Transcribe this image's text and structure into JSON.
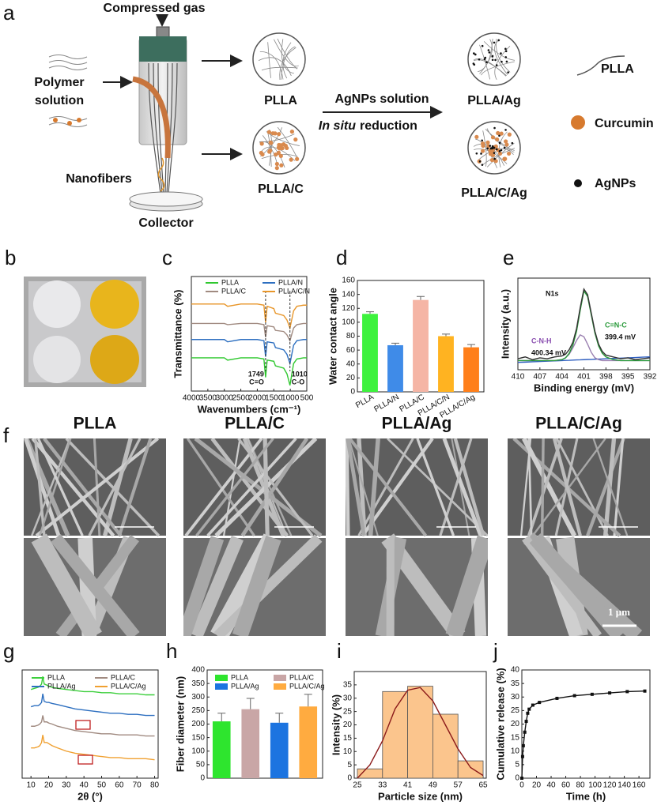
{
  "panel_letters": [
    "a",
    "b",
    "c",
    "d",
    "e",
    "f",
    "g",
    "h",
    "i",
    "j"
  ],
  "schematic": {
    "compressed_gas": "Compressed gas",
    "polymer_solution": [
      "Polymer",
      "solution"
    ],
    "nanofibers": "Nanofibers",
    "collector": "Collector",
    "samples": [
      "PLLA",
      "PLLA/C",
      "PLLA/Ag",
      "PLLA/C/Ag"
    ],
    "process": {
      "reagent": "AgNPs solution",
      "method_italic": "In situ",
      "method": "reduction"
    },
    "legend": [
      "PLLA",
      "Curcumin",
      "AgNPs"
    ]
  },
  "sem": {
    "columns": [
      "PLLA",
      "PLLA/C",
      "PLLA/Ag",
      "PLLA/C/Ag"
    ],
    "scale_bar": "1 μm"
  },
  "chart_data": [
    {
      "type": "line",
      "ylabel": "Transmittance (%)",
      "xlabel": "Wavenumbers (cm⁻¹)",
      "legend": true,
      "x": [
        4000,
        3500,
        3000,
        2900,
        2500,
        2000,
        1800,
        1749,
        1700,
        1500,
        1450,
        1200,
        1100,
        1010,
        900,
        800,
        600,
        500
      ],
      "xlim": [
        4000,
        500
      ],
      "ylim": [
        0,
        100
      ],
      "xticks": [
        4000,
        3500,
        3000,
        2500,
        2000,
        1500,
        1000,
        500
      ],
      "series": [
        {
          "name": "PLLA",
          "color": "#2fc82f",
          "values": [
            29,
            29,
            29,
            27,
            29,
            29,
            28,
            12,
            27,
            26,
            22,
            20,
            15,
            5,
            24,
            28,
            29,
            29
          ]
        },
        {
          "name": "PLLA/N",
          "color": "#2d6fc0",
          "values": [
            45,
            45,
            45,
            43,
            45,
            45,
            44,
            30,
            43,
            42,
            38,
            36,
            32,
            24,
            40,
            44,
            45,
            45
          ]
        },
        {
          "name": "PLLA/C",
          "color": "#a08a80",
          "values": [
            59,
            59,
            59,
            58,
            59,
            59,
            58,
            47,
            57,
            56,
            53,
            52,
            49,
            44,
            55,
            58,
            59,
            59
          ]
        },
        {
          "name": "PLLA/C/N",
          "color": "#e8962a",
          "values": [
            76,
            76,
            76,
            74,
            76,
            76,
            75,
            60,
            74,
            72,
            68,
            66,
            62,
            55,
            70,
            74,
            75,
            75
          ]
        }
      ],
      "peaks": [
        {
          "value": 1749,
          "label": "C=O"
        },
        {
          "value": 1010,
          "label": "C-O"
        }
      ]
    },
    {
      "type": "bar",
      "ylabel": "Water contact  angle",
      "categories": [
        "PLLA",
        "PLLA/N",
        "PLLA/C",
        "PLLA/C/N",
        "PLLA/C/Ag"
      ],
      "values": [
        112,
        67,
        132,
        80,
        64
      ],
      "errors": [
        3,
        3,
        5,
        3,
        4
      ],
      "colors": [
        "#3df23d",
        "#3f8be8",
        "#f5b5a5",
        "#ffb321",
        "#ff7f1a"
      ],
      "ylim": [
        0,
        160
      ],
      "yticks": [
        0,
        20,
        40,
        60,
        80,
        100,
        120,
        140,
        160
      ]
    },
    {
      "type": "line",
      "ylabel": "Intensity (a.u.)",
      "xlabel": "Binding energy (mV)",
      "x": [
        410,
        409,
        408,
        407,
        406,
        405,
        404,
        403.5,
        403,
        402.5,
        402,
        401.5,
        401,
        400.5,
        400,
        399.5,
        399,
        398.5,
        398,
        397,
        396,
        395,
        394,
        393,
        392
      ],
      "xlim": [
        410,
        392
      ],
      "ylim": [
        0,
        100
      ],
      "xticks": [
        410,
        407,
        404,
        401,
        398,
        395,
        392
      ],
      "series": [
        {
          "color": "#2f5fc0",
          "values": [
            8,
            8.3,
            8.7,
            9,
            9.3,
            9.7,
            10,
            10.2,
            10.3,
            10.5,
            10.7,
            10.8,
            11,
            11.2,
            11.3,
            11.5,
            11.7,
            11.8,
            12,
            12.3,
            12.7,
            13,
            13.3,
            13.7,
            14
          ]
        },
        {
          "color": "#9a7fb0",
          "values": [
            10,
            10,
            10,
            10,
            10,
            10,
            11,
            13,
            17,
            24,
            32,
            38,
            36,
            28,
            19,
            13,
            11,
            10,
            10,
            10,
            10,
            10,
            10,
            10,
            10
          ]
        },
        {
          "color": "#2a9a3a",
          "values": [
            10,
            10,
            10,
            10,
            10,
            10,
            11,
            13,
            18,
            27,
            42,
            65,
            86,
            80,
            60,
            40,
            26,
            18,
            14,
            11,
            10,
            10,
            10,
            10,
            10
          ]
        },
        {
          "color": "#333333",
          "values": [
            12,
            14,
            11,
            13,
            12,
            14,
            15,
            17,
            22,
            30,
            45,
            68,
            88,
            82,
            62,
            42,
            28,
            20,
            16,
            14,
            12,
            13,
            11,
            12,
            13
          ]
        }
      ],
      "annotations": [
        "N1s",
        "C-N-H",
        "400.34 mV",
        "C=N-C",
        "399.4 mV"
      ]
    },
    {
      "type": "line",
      "xlabel": "2θ (°)",
      "legend": true,
      "x": [
        10,
        12,
        14,
        15,
        16,
        16.7,
        17.5,
        19,
        20,
        22,
        25,
        30,
        35,
        40,
        45,
        50,
        55,
        60,
        65,
        70,
        75,
        80
      ],
      "xlim": [
        5,
        82
      ],
      "ylim": [
        0,
        100
      ],
      "xticks": [
        10,
        20,
        30,
        40,
        50,
        60,
        70,
        80
      ],
      "series": [
        {
          "name": "PLLA",
          "color": "#3ccf3c",
          "values": [
            82,
            83,
            84,
            85,
            87,
            94,
            87,
            86,
            85,
            84,
            83,
            82,
            81,
            80,
            80,
            79,
            79,
            78,
            78,
            78,
            77,
            77
          ]
        },
        {
          "name": "PLLA/C",
          "color": "#a08a80",
          "values": [
            48,
            48,
            49,
            50,
            52,
            58,
            52,
            52,
            51,
            50,
            48,
            46,
            44,
            43,
            42,
            41,
            41,
            40,
            40,
            40,
            39,
            39
          ]
        },
        {
          "name": "PLLA/Ag",
          "color": "#2d6fc0",
          "values": [
            66,
            67,
            67,
            68,
            70,
            78,
            71,
            70,
            70,
            69,
            68,
            66,
            64,
            63,
            62,
            61,
            60,
            60,
            59,
            59,
            58,
            58
          ]
        },
        {
          "name": "PLLA/C/Ag",
          "color": "#f0a030",
          "values": [
            28,
            28,
            29,
            30,
            33,
            40,
            33,
            33,
            32,
            30,
            28,
            25,
            23,
            22,
            21,
            20,
            19,
            19,
            18,
            18,
            18,
            17
          ]
        }
      ]
    },
    {
      "type": "bar",
      "ylabel": "Fiber diameter (nm)",
      "legend": true,
      "category_labels": false,
      "categories": [
        "PLLA",
        "PLLA/C",
        "PLLA/Ag",
        "PLLA/C/Ag"
      ],
      "values": [
        210,
        255,
        205,
        265
      ],
      "errors": [
        30,
        40,
        35,
        45
      ],
      "colors": [
        "#2ee52e",
        "#c9a6a6",
        "#1c74e0",
        "#ffab40"
      ],
      "ylim": [
        0,
        400
      ],
      "yticks": [
        0,
        50,
        100,
        150,
        200,
        250,
        300,
        350,
        400
      ]
    },
    {
      "type": "histogram",
      "ylabel": "Intensity (%)",
      "xlabel": "Particle size (nm)",
      "bins": [
        25,
        33,
        41,
        49,
        57,
        65
      ],
      "values": [
        3.5,
        32.5,
        34.5,
        24,
        6.5
      ],
      "color": "#fbc58d",
      "xlim": [
        24,
        66
      ],
      "ylim": [
        0,
        40
      ],
      "xticks": [
        25,
        33,
        41,
        49,
        57,
        65
      ],
      "yticks": [
        0,
        5,
        10,
        15,
        20,
        25,
        30,
        35
      ],
      "fit": {
        "color": "#8b1a1a",
        "x": [
          25,
          29,
          33,
          37,
          41,
          45,
          49,
          53,
          57,
          61,
          65
        ],
        "values": [
          0,
          5,
          14,
          26,
          33,
          34,
          29,
          20,
          11,
          4,
          1
        ]
      }
    },
    {
      "type": "line",
      "ylabel": "Cumulative  release (%)",
      "xlabel": "Time (h)",
      "marker": "square",
      "x": [
        0,
        1,
        2,
        4,
        6,
        8,
        10,
        15,
        24,
        48,
        72,
        96,
        120,
        144,
        168
      ],
      "xlim": [
        0,
        175
      ],
      "ylim": [
        0,
        40
      ],
      "xticks": [
        0,
        20,
        40,
        60,
        80,
        100,
        120,
        140,
        160
      ],
      "yticks": [
        0,
        5,
        10,
        15,
        20,
        25,
        30,
        35,
        40
      ],
      "series": [
        {
          "color": "#111111",
          "values": [
            0,
            8,
            12,
            17,
            21,
            24,
            25.5,
            27,
            28,
            29.5,
            30.5,
            31,
            31.5,
            32,
            32.2
          ]
        }
      ]
    }
  ]
}
